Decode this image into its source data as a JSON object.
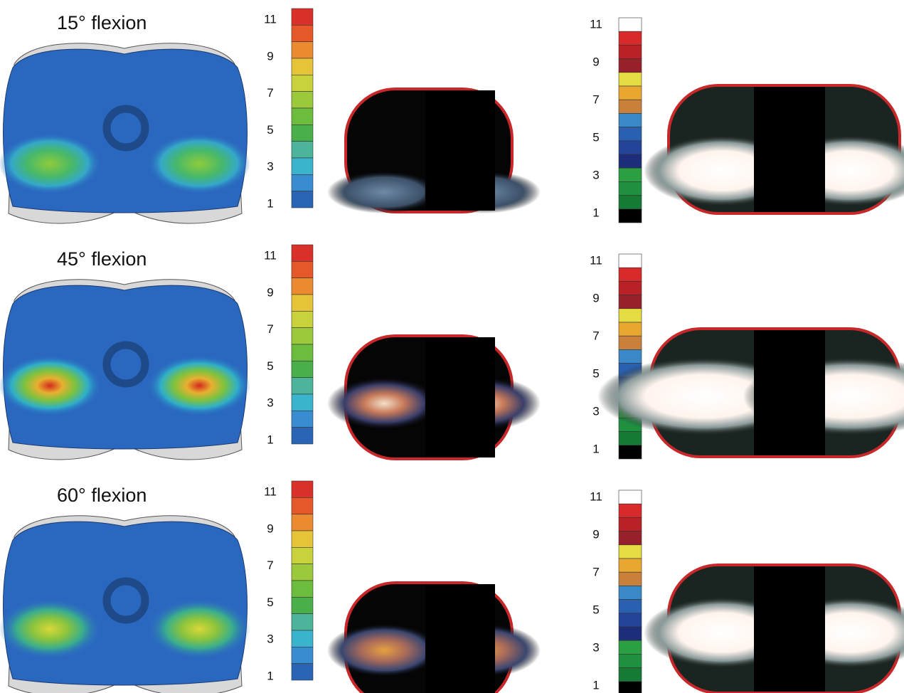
{
  "rows": [
    {
      "label": "15° flexion"
    },
    {
      "label": "45° flexion"
    },
    {
      "label": "60° flexion"
    }
  ],
  "scale_model": {
    "ticks": [
      11,
      9,
      7,
      5,
      3,
      1
    ]
  },
  "scale_film": {
    "ticks": [
      11,
      9,
      7,
      5,
      3,
      1
    ]
  }
}
